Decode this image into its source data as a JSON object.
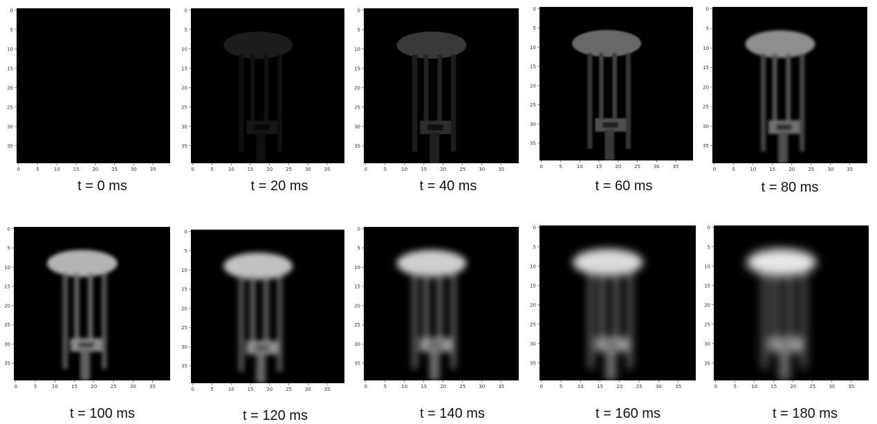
{
  "frames": [
    {
      "label": "t = 0 ms",
      "brightness": 0.0,
      "blur": 0
    },
    {
      "label": "t = 20 ms",
      "brightness": 0.12,
      "blur": 0
    },
    {
      "label": "t = 40 ms",
      "brightness": 0.25,
      "blur": 0
    },
    {
      "label": "t = 60 ms",
      "brightness": 0.45,
      "blur": 0.5
    },
    {
      "label": "t = 80 ms",
      "brightness": 0.62,
      "blur": 1
    },
    {
      "label": "t = 100 ms",
      "brightness": 0.78,
      "blur": 1.5
    },
    {
      "label": "t = 120 ms",
      "brightness": 0.84,
      "blur": 2
    },
    {
      "label": "t = 140 ms",
      "brightness": 0.9,
      "blur": 2.5
    },
    {
      "label": "t = 160 ms",
      "brightness": 0.95,
      "blur": 3
    },
    {
      "label": "t = 180 ms",
      "brightness": 1.0,
      "blur": 3.5
    }
  ],
  "axes": {
    "x_ticks": [
      0,
      5,
      10,
      15,
      20,
      25,
      30,
      35
    ],
    "x_ticks_last": [
      0,
      5,
      10,
      15,
      20,
      25,
      30,
      35
    ],
    "y_ticks": [
      0,
      5,
      10,
      15,
      20,
      25,
      30,
      35
    ],
    "range": [
      0,
      40
    ]
  },
  "colors": {
    "background": "#000000",
    "object": "#ffffff"
  }
}
